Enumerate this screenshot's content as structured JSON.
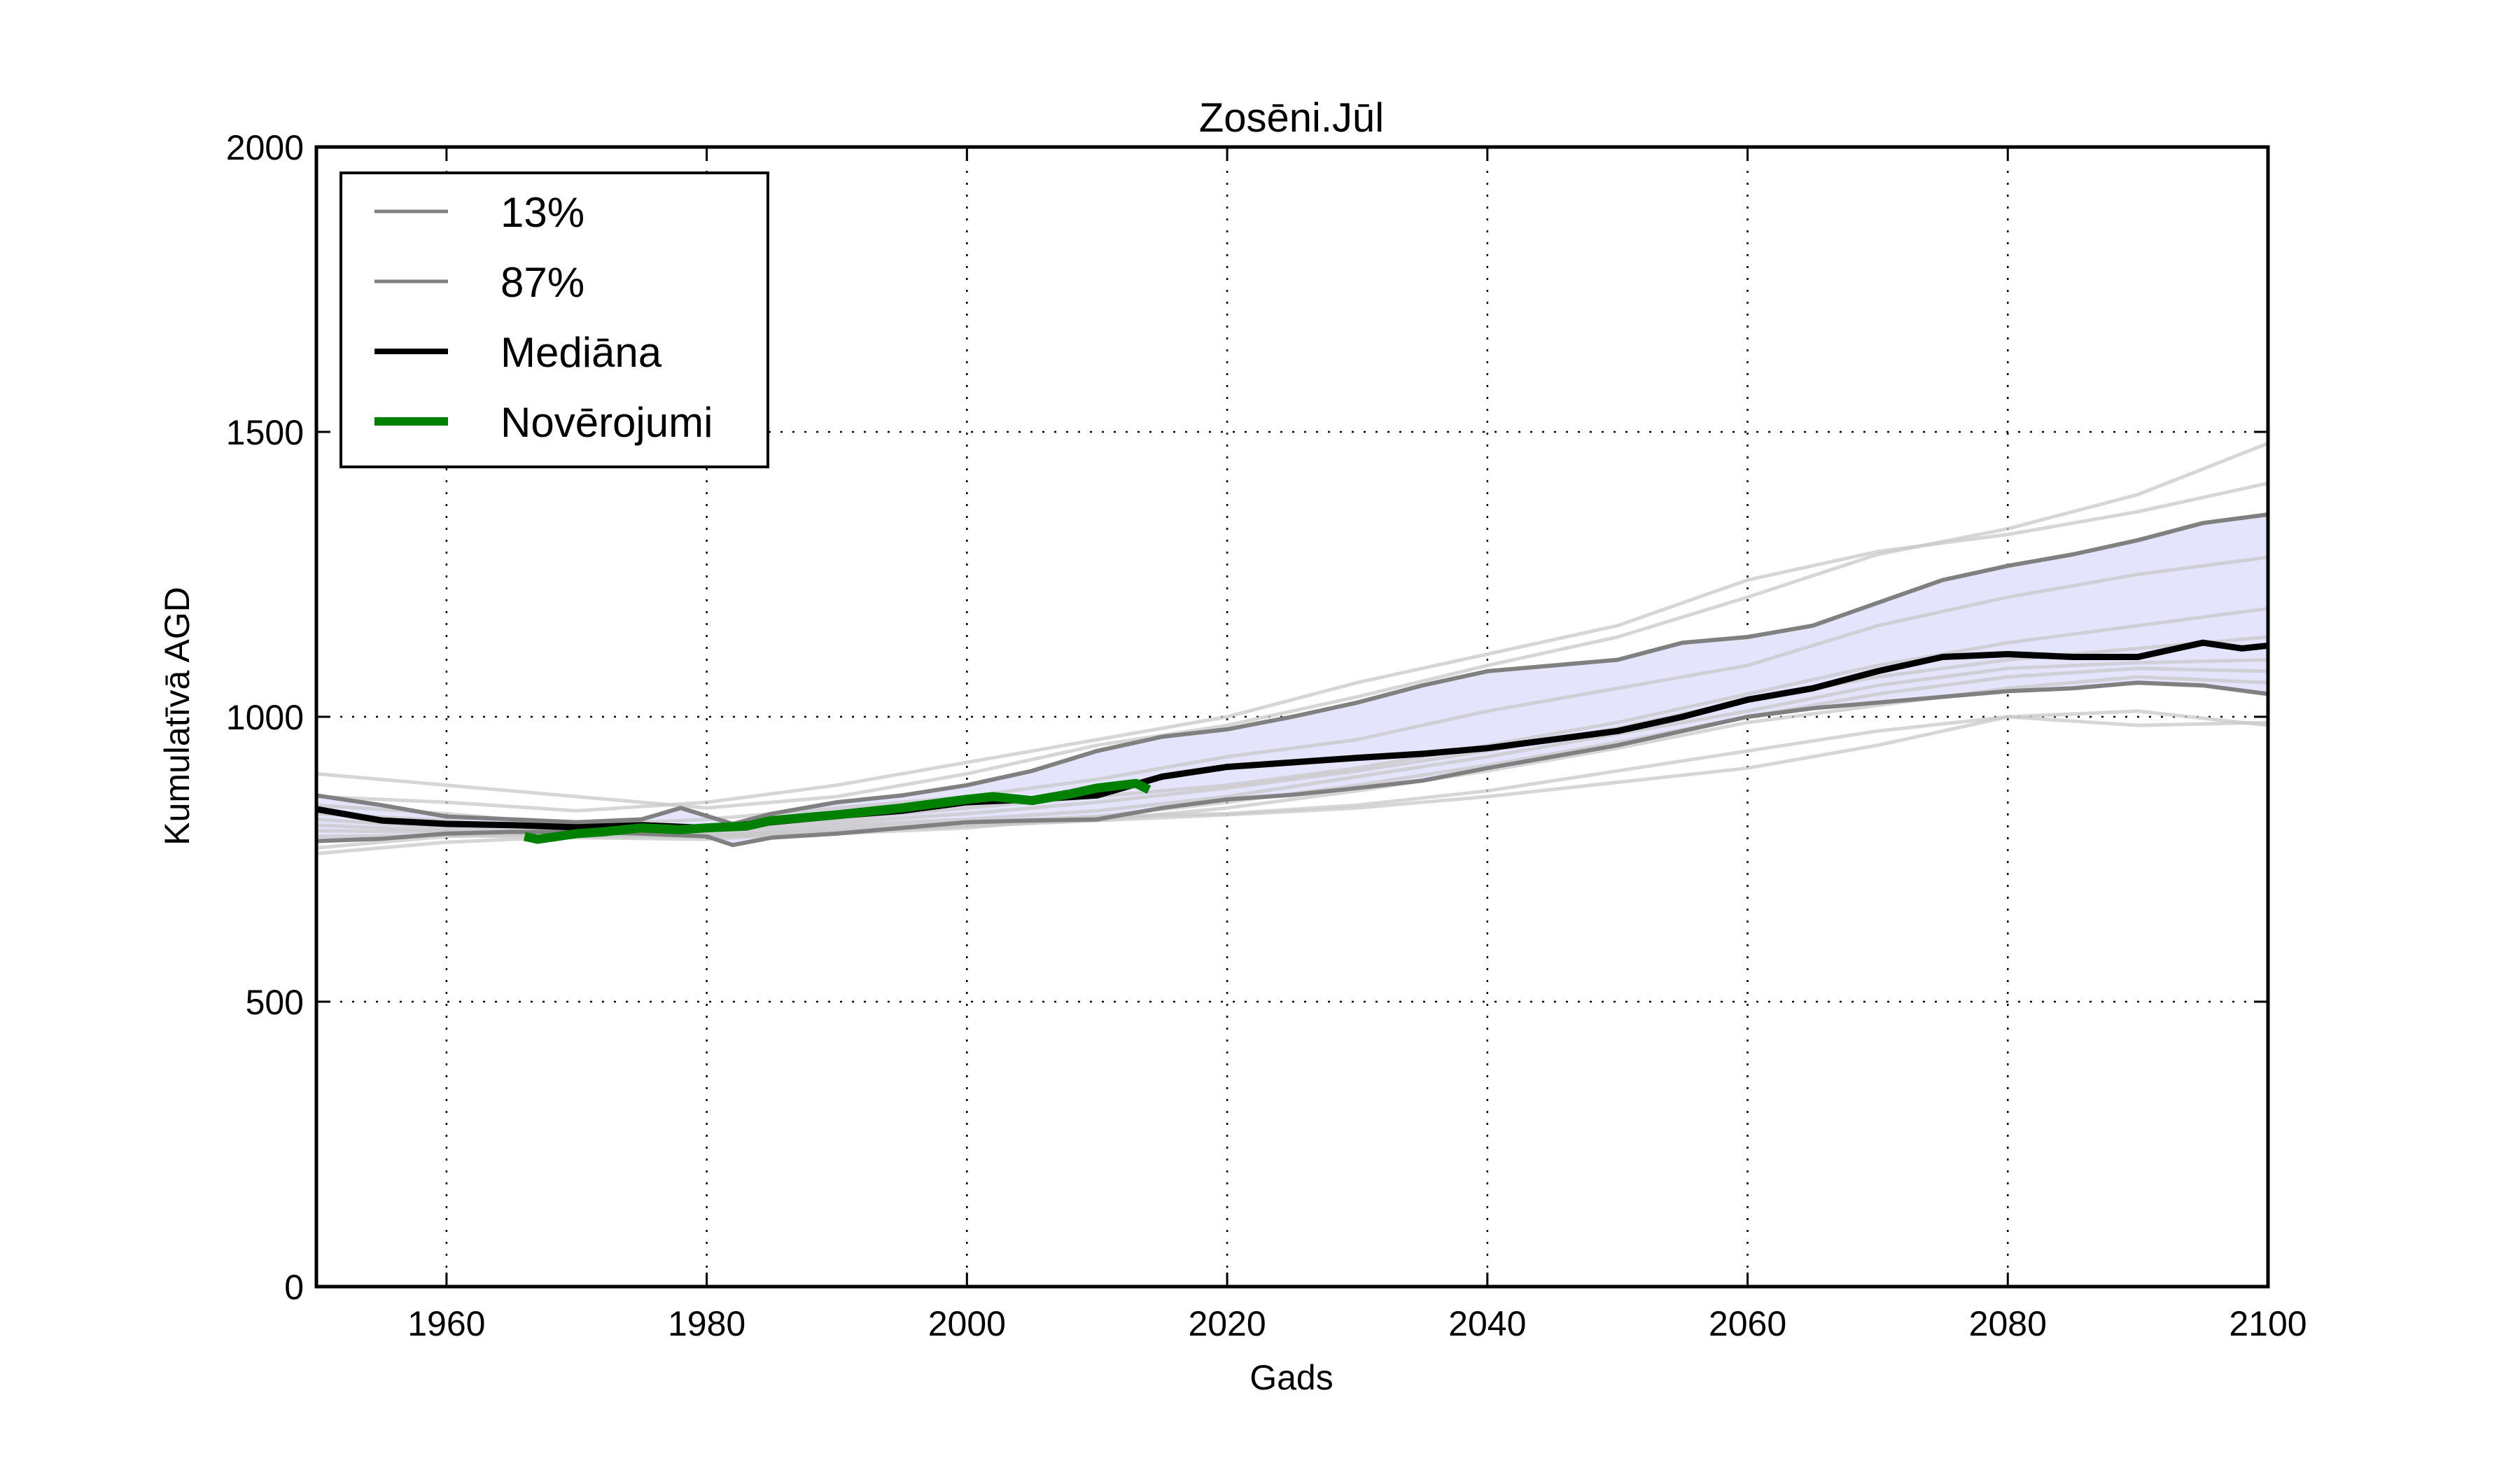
{
  "chart_data": {
    "type": "line",
    "title": "Zosēni.Jūl",
    "xlabel": "Gads",
    "ylabel": "Kumulatīvā AGD",
    "xlim": [
      1950,
      2100
    ],
    "ylim": [
      0,
      2000
    ],
    "xticks": [
      1960,
      1980,
      2000,
      2020,
      2040,
      2060,
      2080,
      2100
    ],
    "yticks": [
      0,
      500,
      1000,
      1500,
      2000
    ],
    "grid": true,
    "legend_position": "top-left",
    "colors": {
      "band_fill": "#e4e4fc",
      "ensemble": "#c8c8c8",
      "percentile": "#808080",
      "median": "#000000",
      "observations": "#008000"
    },
    "legend": [
      {
        "label": "13%",
        "series": "p13"
      },
      {
        "label": "87%",
        "series": "p87"
      },
      {
        "label": "Mediāna",
        "series": "median"
      },
      {
        "label": "Novērojumi",
        "series": "obs"
      }
    ],
    "band": {
      "lower": "p13",
      "upper": "p87",
      "description": "shaded range between 13% and 87% percentiles"
    },
    "series": [
      {
        "name": "p13",
        "label": "13%",
        "x": [
          1950,
          1955,
          1960,
          1965,
          1970,
          1975,
          1980,
          1982,
          1985,
          1990,
          1995,
          2000,
          2005,
          2010,
          2015,
          2020,
          2025,
          2030,
          2035,
          2040,
          2045,
          2050,
          2055,
          2060,
          2065,
          2070,
          2075,
          2080,
          2085,
          2090,
          2095,
          2100
        ],
        "y": [
          782,
          786,
          795,
          798,
          798,
          795,
          790,
          775,
          788,
          795,
          805,
          815,
          818,
          820,
          840,
          855,
          863,
          875,
          888,
          910,
          930,
          950,
          975,
          1000,
          1015,
          1025,
          1035,
          1045,
          1050,
          1060,
          1055,
          1040
        ]
      },
      {
        "name": "p87",
        "label": "87%",
        "x": [
          1950,
          1955,
          1960,
          1965,
          1970,
          1975,
          1978,
          1982,
          1985,
          1990,
          1995,
          2000,
          2005,
          2010,
          2015,
          2020,
          2025,
          2030,
          2035,
          2040,
          2045,
          2050,
          2055,
          2060,
          2065,
          2070,
          2075,
          2080,
          2085,
          2090,
          2095,
          2100
        ],
        "y": [
          862,
          845,
          825,
          820,
          815,
          820,
          840,
          812,
          830,
          850,
          862,
          880,
          905,
          940,
          965,
          978,
          1000,
          1025,
          1055,
          1080,
          1090,
          1100,
          1130,
          1140,
          1160,
          1200,
          1240,
          1265,
          1285,
          1310,
          1340,
          1355
        ]
      },
      {
        "name": "median",
        "label": "Mediāna",
        "x": [
          1950,
          1955,
          1960,
          1965,
          1970,
          1975,
          1980,
          1985,
          1990,
          1995,
          2000,
          2005,
          2010,
          2015,
          2020,
          2025,
          2030,
          2035,
          2040,
          2045,
          2050,
          2055,
          2060,
          2065,
          2070,
          2075,
          2080,
          2085,
          2090,
          2095,
          2098,
          2100
        ],
        "y": [
          838,
          818,
          812,
          810,
          806,
          810,
          805,
          815,
          826,
          835,
          850,
          855,
          862,
          895,
          912,
          920,
          928,
          935,
          945,
          960,
          975,
          1000,
          1030,
          1050,
          1080,
          1105,
          1110,
          1105,
          1105,
          1130,
          1120,
          1125
        ]
      },
      {
        "name": "obs",
        "label": "Novērojumi",
        "x": [
          1966,
          1967,
          1970,
          1972,
          1975,
          1978,
          1980,
          1983,
          1985,
          1990,
          1995,
          2000,
          2002,
          2005,
          2008,
          2010,
          2013,
          2014
        ],
        "y": [
          790,
          785,
          795,
          798,
          805,
          802,
          805,
          808,
          818,
          828,
          840,
          855,
          860,
          853,
          865,
          875,
          883,
          872
        ]
      }
    ],
    "ensemble": [
      {
        "x": [
          1950,
          1960,
          1970,
          1980,
          1990,
          2000,
          2010,
          2020,
          2030,
          2040,
          2050,
          2060,
          2070,
          2080,
          2090,
          2100
        ],
        "y": [
          900,
          880,
          860,
          840,
          860,
          900,
          950,
          985,
          1035,
          1090,
          1140,
          1210,
          1285,
          1330,
          1390,
          1480
        ]
      },
      {
        "x": [
          1950,
          1960,
          1970,
          1980,
          1990,
          2000,
          2010,
          2020,
          2030,
          2040,
          2050,
          2060,
          2070,
          2080,
          2090,
          2100
        ],
        "y": [
          860,
          850,
          835,
          850,
          880,
          920,
          960,
          1000,
          1060,
          1110,
          1160,
          1240,
          1290,
          1320,
          1360,
          1410
        ]
      },
      {
        "x": [
          1950,
          1960,
          1970,
          1980,
          1990,
          2000,
          2010,
          2020,
          2030,
          2040,
          2050,
          2060,
          2070,
          2080,
          2090,
          2100
        ],
        "y": [
          845,
          830,
          810,
          820,
          840,
          860,
          890,
          930,
          960,
          1010,
          1050,
          1090,
          1160,
          1210,
          1250,
          1280
        ]
      },
      {
        "x": [
          1950,
          1960,
          1970,
          1980,
          1990,
          2000,
          2010,
          2020,
          2030,
          2040,
          2050,
          2060,
          2070,
          2080,
          2090,
          2100
        ],
        "y": [
          830,
          818,
          800,
          806,
          820,
          840,
          860,
          880,
          910,
          950,
          990,
          1040,
          1090,
          1130,
          1160,
          1190
        ]
      },
      {
        "x": [
          1950,
          1960,
          1970,
          1980,
          1990,
          2000,
          2010,
          2020,
          2030,
          2040,
          2050,
          2060,
          2070,
          2080,
          2090,
          2100
        ],
        "y": [
          820,
          805,
          798,
          800,
          815,
          830,
          850,
          875,
          905,
          940,
          980,
          1030,
          1070,
          1100,
          1120,
          1140
        ]
      },
      {
        "x": [
          1950,
          1960,
          1970,
          1980,
          1990,
          2000,
          2010,
          2020,
          2030,
          2040,
          2050,
          2060,
          2070,
          2080,
          2090,
          2100
        ],
        "y": [
          810,
          800,
          795,
          795,
          810,
          820,
          835,
          860,
          895,
          930,
          970,
          1010,
          1055,
          1085,
          1095,
          1100
        ]
      },
      {
        "x": [
          1950,
          1960,
          1970,
          1980,
          1990,
          2000,
          2010,
          2020,
          2030,
          2040,
          2050,
          2060,
          2070,
          2080,
          2090,
          2100
        ],
        "y": [
          800,
          798,
          790,
          790,
          805,
          815,
          825,
          850,
          880,
          915,
          955,
          1000,
          1040,
          1070,
          1085,
          1080
        ]
      },
      {
        "x": [
          1950,
          1960,
          1970,
          1980,
          1990,
          2000,
          2010,
          2020,
          2030,
          2040,
          2050,
          2060,
          2070,
          2080,
          2090,
          2100
        ],
        "y": [
          790,
          792,
          788,
          785,
          798,
          808,
          818,
          840,
          870,
          905,
          945,
          990,
          1020,
          1050,
          1070,
          1060
        ]
      },
      {
        "x": [
          1950,
          1960,
          1970,
          1980,
          1990,
          2000,
          2010,
          2020,
          2030,
          2040,
          2050,
          2060,
          2070,
          2080,
          2090,
          2100
        ],
        "y": [
          770,
          790,
          795,
          790,
          795,
          805,
          825,
          830,
          845,
          870,
          905,
          940,
          975,
          1000,
          985,
          990
        ]
      },
      {
        "x": [
          1950,
          1960,
          1970,
          1980,
          1990,
          2000,
          2010,
          2020,
          2030,
          2040,
          2050,
          2060,
          2070,
          2080,
          2090,
          2100
        ],
        "y": [
          760,
          780,
          790,
          792,
          800,
          810,
          818,
          828,
          840,
          860,
          885,
          910,
          950,
          1000,
          1010,
          985
        ]
      }
    ]
  }
}
